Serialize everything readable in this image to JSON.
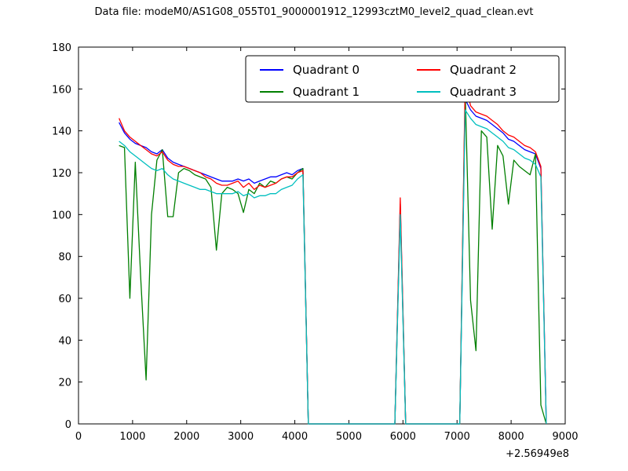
{
  "chart_data": {
    "type": "line",
    "title": "Data file: modeM0/AS1G08_055T01_9000001912_12993cztM0_level2_quad_clean.evt",
    "xlabel": "",
    "ylabel": "",
    "xlim": [
      0,
      9000
    ],
    "ylim": [
      0,
      180
    ],
    "xticks": [
      0,
      1000,
      2000,
      3000,
      4000,
      5000,
      6000,
      7000,
      8000,
      9000
    ],
    "yticks": [
      0,
      20,
      40,
      60,
      80,
      100,
      120,
      140,
      160,
      180
    ],
    "x_offset_label": "+2.56949e8",
    "grid": false,
    "legend_position": "upper center",
    "legend_columns": 2,
    "background_color": "#ffffff",
    "frame_color": "#000000",
    "x": [
      750,
      850,
      950,
      1050,
      1150,
      1250,
      1350,
      1450,
      1550,
      1650,
      1750,
      1850,
      1950,
      2050,
      2150,
      2250,
      2350,
      2450,
      2550,
      2650,
      2750,
      2850,
      2950,
      3050,
      3150,
      3250,
      3350,
      3450,
      3550,
      3650,
      3750,
      3850,
      3950,
      4050,
      4150,
      4250,
      4350,
      4450,
      4550,
      4650,
      4750,
      4850,
      4950,
      5050,
      5150,
      5250,
      5350,
      5450,
      5550,
      5650,
      5750,
      5850,
      5950,
      6050,
      6150,
      6250,
      6350,
      6450,
      6550,
      6650,
      6750,
      6850,
      6950,
      7050,
      7150,
      7250,
      7350,
      7450,
      7550,
      7650,
      7750,
      7850,
      7950,
      8050,
      8150,
      8250,
      8350,
      8450,
      8550,
      8650
    ],
    "series": [
      {
        "name": "Quadrant 0",
        "color": "#0000ff",
        "values": [
          144,
          139,
          136,
          134,
          133,
          132,
          130,
          129,
          131,
          127,
          125,
          124,
          123,
          122,
          121,
          120,
          119,
          118,
          117,
          116,
          116,
          116,
          117,
          116,
          117,
          115,
          116,
          117,
          118,
          118,
          119,
          120,
          119,
          121,
          122,
          0,
          0,
          0,
          0,
          0,
          0,
          0,
          0,
          0,
          0,
          0,
          0,
          0,
          0,
          0,
          0,
          0,
          105,
          0,
          0,
          0,
          0,
          0,
          0,
          0,
          0,
          0,
          0,
          0,
          155,
          150,
          147,
          146,
          145,
          143,
          141,
          139,
          136,
          135,
          133,
          131,
          130,
          129,
          122,
          0
        ]
      },
      {
        "name": "Quadrant 1",
        "color": "#007f00",
        "values": [
          133,
          132,
          60,
          125,
          70,
          21,
          100,
          126,
          131,
          99,
          99,
          120,
          122,
          121,
          119,
          118,
          117,
          113,
          83,
          110,
          113,
          112,
          110,
          101,
          112,
          110,
          115,
          113,
          116,
          115,
          117,
          118,
          117,
          120,
          122,
          0,
          0,
          0,
          0,
          0,
          0,
          0,
          0,
          0,
          0,
          0,
          0,
          0,
          0,
          0,
          0,
          0,
          103,
          0,
          0,
          0,
          0,
          0,
          0,
          0,
          0,
          0,
          0,
          0,
          160,
          59,
          35,
          140,
          137,
          93,
          133,
          128,
          105,
          126,
          123,
          121,
          119,
          129,
          9,
          0
        ]
      },
      {
        "name": "Quadrant 2",
        "color": "#ff0000",
        "values": [
          146,
          140,
          137,
          135,
          133,
          131,
          129,
          128,
          130,
          126,
          124,
          123,
          123,
          122,
          121,
          120,
          118,
          117,
          115,
          114,
          114,
          115,
          116,
          113,
          115,
          112,
          114,
          113,
          114,
          115,
          117,
          118,
          118,
          120,
          121,
          0,
          0,
          0,
          0,
          0,
          0,
          0,
          0,
          0,
          0,
          0,
          0,
          0,
          0,
          0,
          0,
          0,
          108,
          0,
          0,
          0,
          0,
          0,
          0,
          0,
          0,
          0,
          0,
          0,
          163,
          152,
          149,
          148,
          147,
          145,
          143,
          140,
          138,
          137,
          135,
          133,
          132,
          130,
          123,
          0
        ]
      },
      {
        "name": "Quadrant 3",
        "color": "#00bfbf",
        "values": [
          135,
          133,
          130,
          128,
          126,
          124,
          122,
          121,
          122,
          119,
          117,
          116,
          115,
          114,
          113,
          112,
          112,
          111,
          110,
          110,
          110,
          110,
          111,
          109,
          110,
          108,
          109,
          109,
          110,
          110,
          112,
          113,
          114,
          117,
          119,
          0,
          0,
          0,
          0,
          0,
          0,
          0,
          0,
          0,
          0,
          0,
          0,
          0,
          0,
          0,
          0,
          0,
          100,
          0,
          0,
          0,
          0,
          0,
          0,
          0,
          0,
          0,
          0,
          0,
          150,
          146,
          143,
          142,
          141,
          139,
          137,
          135,
          132,
          131,
          129,
          127,
          126,
          124,
          118,
          0
        ]
      }
    ]
  }
}
